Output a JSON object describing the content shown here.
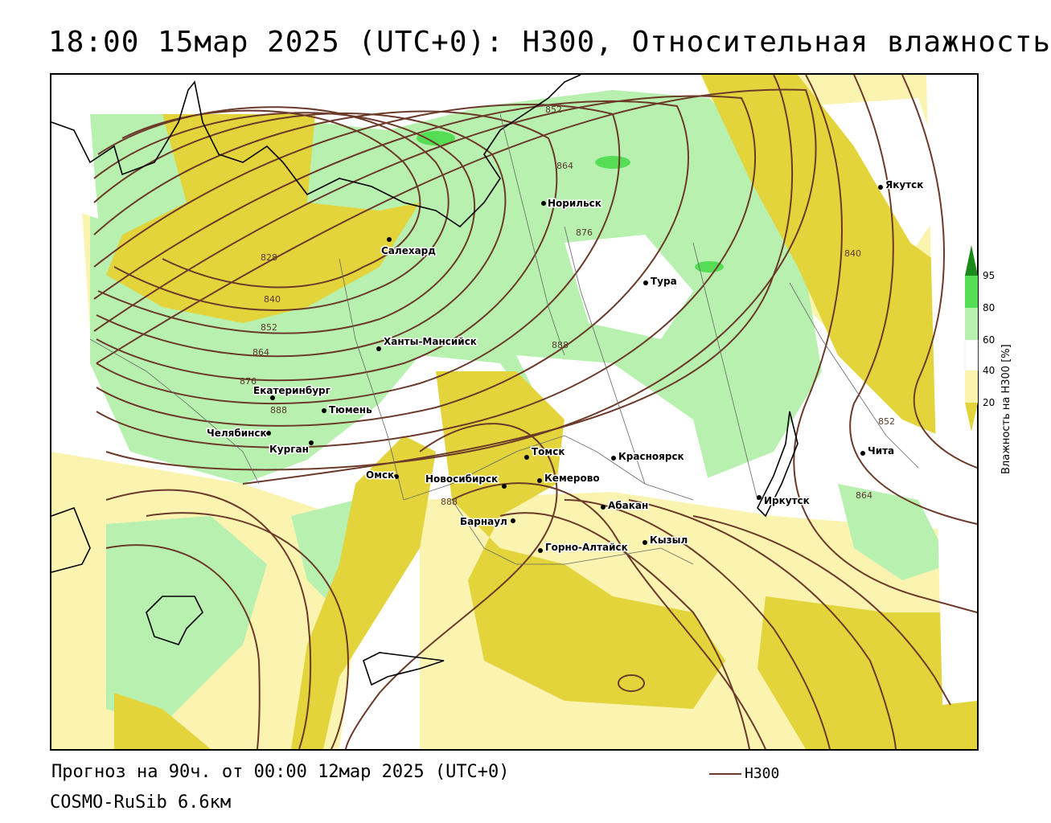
{
  "title": "18:00 15мар 2025 (UTC+0): H300, Относительная влажность",
  "footer": {
    "forecast": "Прогноз на 90ч. от 00:00 12мар 2025 (UTC+0)",
    "model": "COSMO-RuSib 6.6км",
    "isoline_legend": "H300"
  },
  "legend": {
    "title": "Влажность на H300 [%]",
    "ticks": [
      "95",
      "80",
      "60",
      "40",
      "20"
    ],
    "colors": {
      "95": "#1a8a1a",
      "80": "#55dd55",
      "60": "#b8f0b0",
      "40": "#ffffff",
      "20": "#fbf4b0",
      "dry": "#e2d43a"
    }
  },
  "colors": {
    "isoline": "#6b3a2a",
    "coast": "#000000",
    "border": "#666666"
  },
  "cities": [
    {
      "name": "Салехард"
    },
    {
      "name": "Норильск"
    },
    {
      "name": "Якутск"
    },
    {
      "name": "Тура"
    },
    {
      "name": "Ханты-Мансийск"
    },
    {
      "name": "Екатеринбург"
    },
    {
      "name": "Тюмень"
    },
    {
      "name": "Челябинск"
    },
    {
      "name": "Курган"
    },
    {
      "name": "Омск"
    },
    {
      "name": "Новосибирск"
    },
    {
      "name": "Томск"
    },
    {
      "name": "Кемерово"
    },
    {
      "name": "Красноярск"
    },
    {
      "name": "Абакан"
    },
    {
      "name": "Барнаул"
    },
    {
      "name": "Горно-Алтайск"
    },
    {
      "name": "Кызыл"
    },
    {
      "name": "Иркутск"
    },
    {
      "name": "Чита"
    }
  ],
  "isoline_labels": [
    "852",
    "864",
    "876",
    "828",
    "840",
    "852",
    "864",
    "876",
    "888",
    "888",
    "840",
    "852",
    "864",
    "888"
  ]
}
